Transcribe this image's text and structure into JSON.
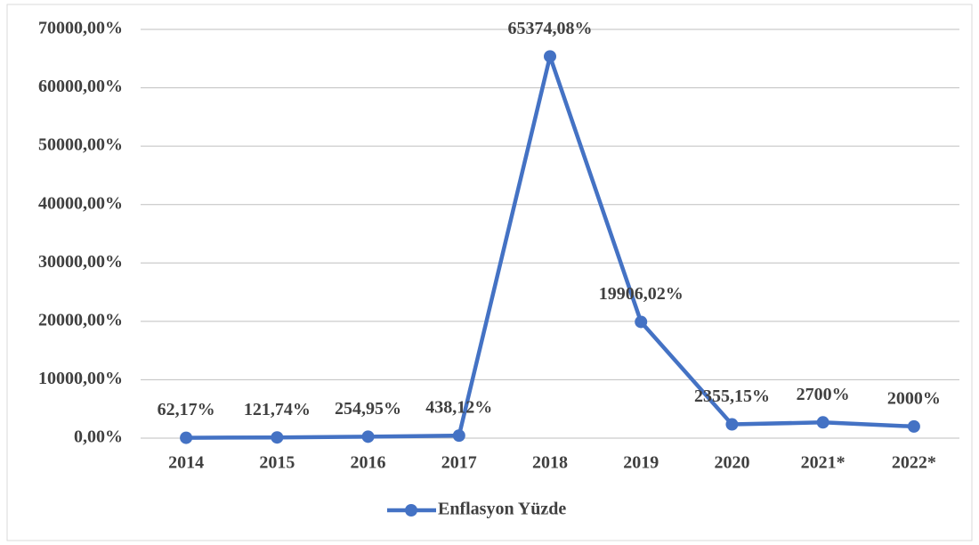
{
  "chart_data": {
    "type": "line",
    "categories": [
      "2014",
      "2015",
      "2016",
      "2017",
      "2018",
      "2019",
      "2020",
      "2021*",
      "2022*"
    ],
    "series": [
      {
        "name": "Enflasyon Yüzde",
        "color": "#4472c4",
        "values": [
          62.17,
          121.74,
          254.95,
          438.12,
          65374.08,
          19906.02,
          2355.15,
          2700,
          2000
        ],
        "value_labels": [
          "62,17%",
          "121,74%",
          "254,95%",
          "438,12%",
          "65374,08%",
          "19906,02%",
          "2355,15%",
          "2700%",
          "2000%"
        ]
      }
    ],
    "ylim": [
      0,
      70000
    ],
    "yticks": [
      {
        "value": 0,
        "label": "0,00%"
      },
      {
        "value": 10000,
        "label": "10000,00%"
      },
      {
        "value": 20000,
        "label": "20000,00%"
      },
      {
        "value": 30000,
        "label": "30000,00%"
      },
      {
        "value": 40000,
        "label": "40000,00%"
      },
      {
        "value": 50000,
        "label": "50000,00%"
      },
      {
        "value": 60000,
        "label": "60000,00%"
      },
      {
        "value": 70000,
        "label": "70000,00%"
      }
    ],
    "grid": true,
    "legend": "bottom"
  }
}
